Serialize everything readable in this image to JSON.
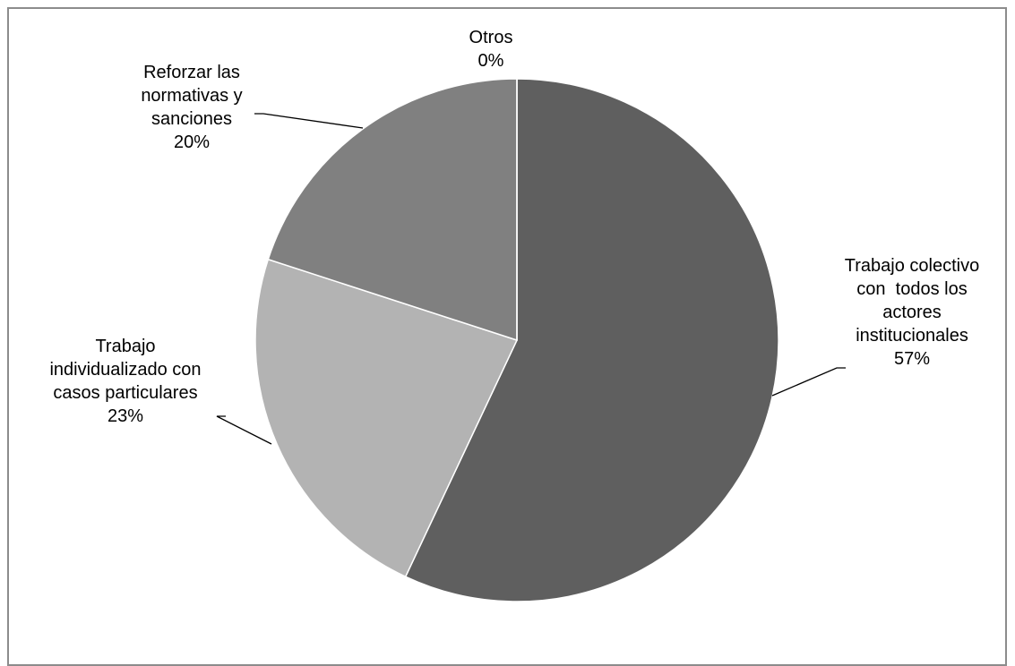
{
  "chart_data": {
    "type": "pie",
    "slices": [
      {
        "label_lines": [
          "Trabajo colectivo",
          "con  todos los",
          "actores",
          "institucionales"
        ],
        "percent_text": "57%",
        "value": 57,
        "color": "#5f5f5f"
      },
      {
        "label_lines": [
          "Trabajo",
          "individualizado con",
          "casos particulares"
        ],
        "percent_text": "23%",
        "value": 23,
        "color": "#b3b3b3"
      },
      {
        "label_lines": [
          "Reforzar las",
          "normativas y",
          "sanciones"
        ],
        "percent_text": "20%",
        "value": 20,
        "color": "#808080"
      },
      {
        "label_lines": [
          "Otros"
        ],
        "percent_text": "0%",
        "value": 0,
        "color": "#4d4d4d"
      }
    ]
  }
}
